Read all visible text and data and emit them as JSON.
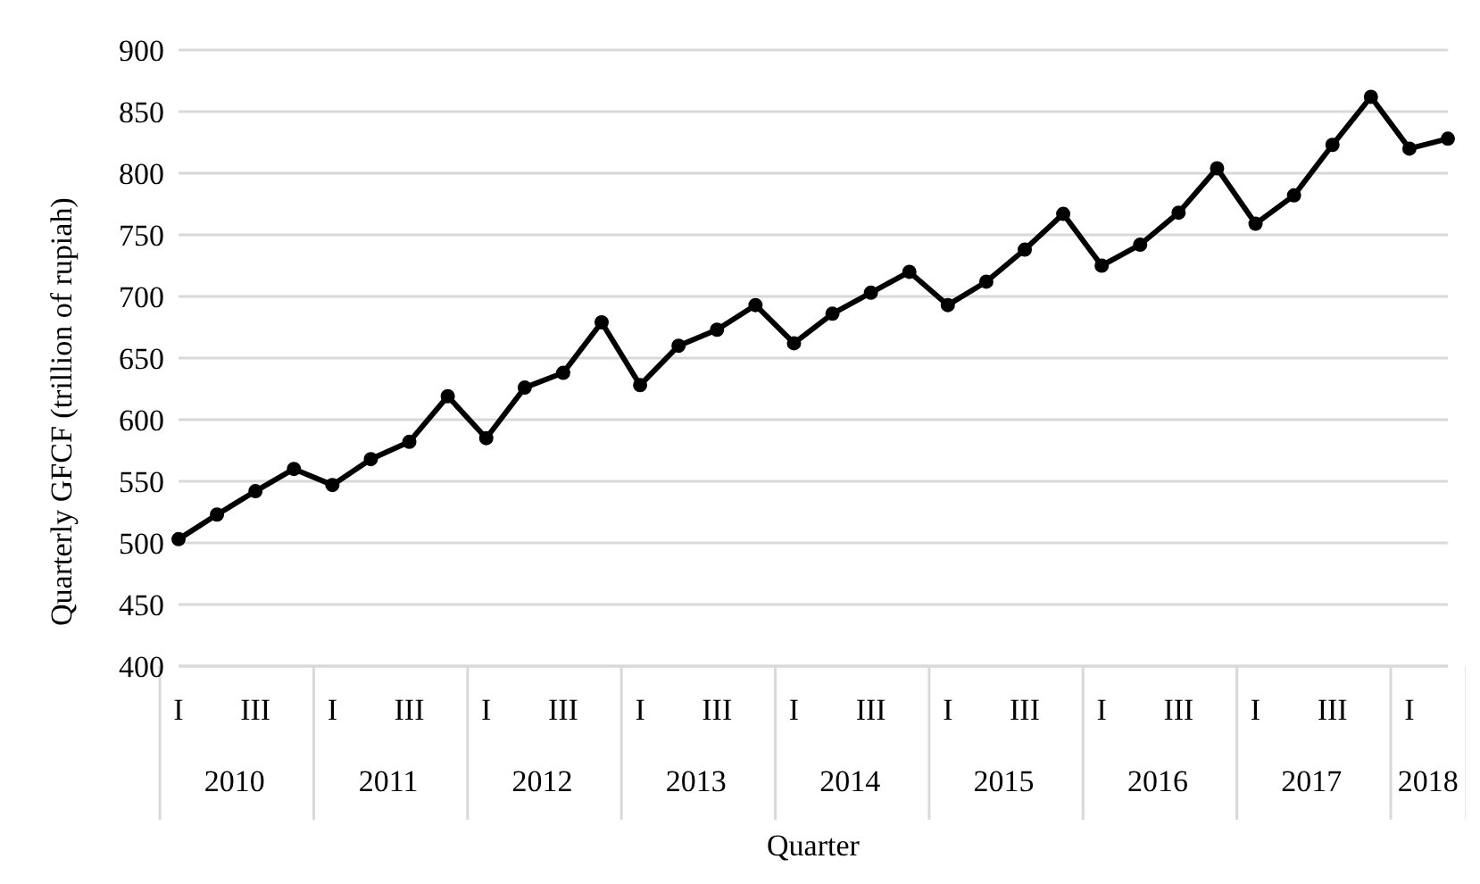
{
  "chart_data": {
    "type": "line",
    "xlabel": "Quarter",
    "ylabel": "Quarterly GFCF (trillion of rupiah)",
    "categories": [
      "I",
      null,
      "III",
      null,
      "I",
      null,
      "III",
      null,
      "I",
      null,
      "III",
      null,
      "I",
      null,
      "III",
      null,
      "I",
      null,
      "III",
      null,
      "I",
      null,
      "III",
      null,
      "I",
      null,
      "III",
      null,
      "I",
      null,
      "III",
      null,
      "I",
      null
    ],
    "series": [
      {
        "color": "#000000",
        "values": [
          503,
          523,
          542,
          560,
          547,
          568,
          582,
          619,
          585,
          626,
          638,
          679,
          628,
          660,
          673,
          693,
          662,
          686,
          703,
          720,
          693,
          712,
          738,
          767,
          725,
          742,
          768,
          804,
          759,
          782,
          823,
          862,
          820,
          828
        ]
      }
    ],
    "annotations": [
      "2010",
      "2011",
      "2012",
      "2013",
      "2014",
      "2015",
      "2016",
      "2017",
      "2018"
    ],
    "ylim": [
      400,
      900
    ],
    "yticks": [
      400,
      450,
      500,
      550,
      600,
      650,
      700,
      750,
      800,
      850,
      900
    ],
    "grid": "y",
    "marker": "circle",
    "line_style": "solid",
    "legend": false
  }
}
